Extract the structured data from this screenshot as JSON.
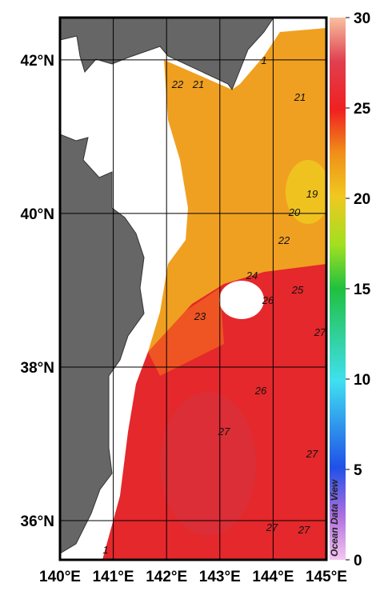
{
  "map": {
    "xlim": [
      140,
      145
    ],
    "ylim": [
      35.49,
      42.55
    ],
    "xticks": [
      {
        "value": 140,
        "label": "140°E"
      },
      {
        "value": 141,
        "label": "141°E"
      },
      {
        "value": 142,
        "label": "142°E"
      },
      {
        "value": 143,
        "label": "143°E"
      },
      {
        "value": 144,
        "label": "144°E"
      },
      {
        "value": 145,
        "label": "145°E"
      }
    ],
    "yticks": [
      {
        "value": 36,
        "label": "36°N"
      },
      {
        "value": 38,
        "label": "38°N"
      },
      {
        "value": 40,
        "label": "40°N"
      },
      {
        "value": 42,
        "label": "42°N"
      }
    ],
    "grid": true,
    "contour_labels": [
      "1",
      "22",
      "21",
      "21",
      "19",
      "20",
      "22",
      "24",
      "25",
      "26",
      "23",
      "27",
      "26",
      "27",
      "27",
      "27",
      "27",
      "1"
    ]
  },
  "colorbar": {
    "lim": [
      0,
      30
    ],
    "ticks": [
      0,
      5,
      10,
      15,
      20,
      25,
      30
    ]
  },
  "watermark": "Ocean Data View"
}
